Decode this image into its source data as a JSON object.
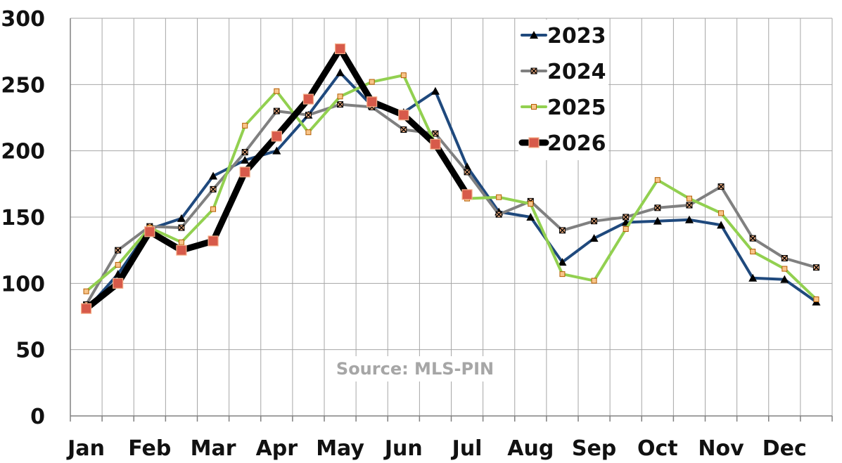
{
  "chart_data": {
    "type": "line",
    "source": "Source: MLS-PIN",
    "ylim": [
      0,
      300
    ],
    "yticks": [
      "0",
      "50",
      "100",
      "150",
      "200",
      "250",
      "300"
    ],
    "month_labels": [
      "Jan",
      "Feb",
      "Mar",
      "Apr",
      "May",
      "Jun",
      "Jul",
      "Aug",
      "Sep",
      "Oct",
      "Nov",
      "Dec"
    ],
    "grid": true,
    "legend_position": "top-right",
    "x_note": "24 half-month points; index i/2 aligns with month labels",
    "series": [
      {
        "name": "2023",
        "color": "#1f497d",
        "marker": "triangle",
        "values": [
          80,
          107,
          141,
          149,
          181,
          193,
          200,
          227,
          259,
          234,
          229,
          245,
          188,
          154,
          150,
          116,
          134,
          146,
          147,
          148,
          144,
          104,
          103,
          86
        ]
      },
      {
        "name": "2024",
        "color": "#808080",
        "marker": "x-square",
        "values": [
          84,
          125,
          143,
          142,
          171,
          199,
          230,
          227,
          235,
          233,
          216,
          213,
          184,
          152,
          162,
          140,
          147,
          150,
          157,
          159,
          173,
          134,
          119,
          112
        ]
      },
      {
        "name": "2025",
        "color": "#92d050",
        "marker": "square-small",
        "values": [
          94,
          114,
          142,
          131,
          156,
          219,
          245,
          214,
          241,
          252,
          257,
          205,
          164,
          165,
          160,
          107,
          102,
          141,
          178,
          164,
          153,
          124,
          111,
          88
        ]
      },
      {
        "name": "2026",
        "color": "#000000",
        "marker": "square-large",
        "values": [
          81,
          100,
          139,
          125,
          132,
          184,
          211,
          239,
          277,
          237,
          227,
          205,
          167
        ]
      }
    ]
  }
}
